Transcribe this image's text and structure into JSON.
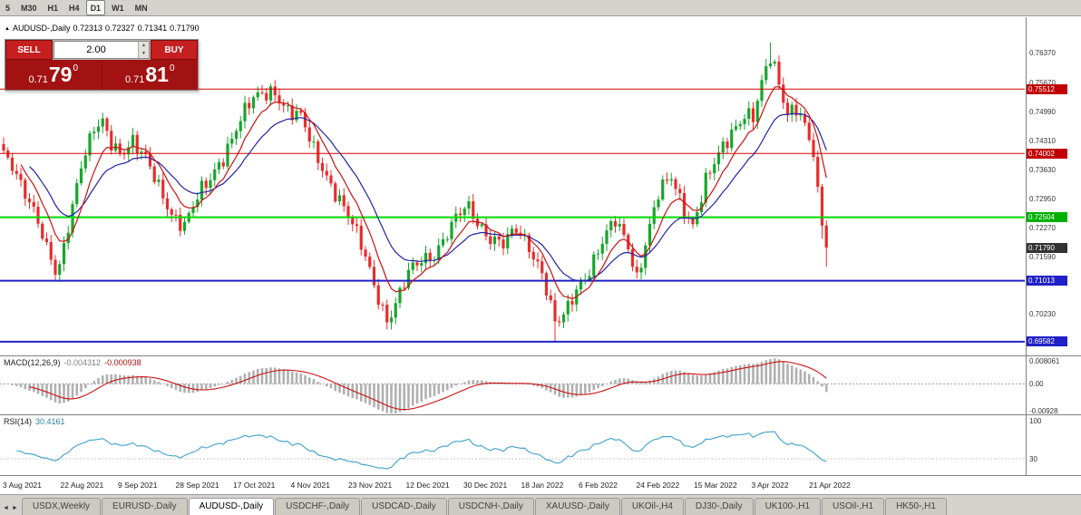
{
  "toolbar": {
    "timeframes": [
      {
        "label": "5",
        "active": false
      },
      {
        "label": "M30",
        "active": false
      },
      {
        "label": "H1",
        "active": false
      },
      {
        "label": "H4",
        "active": false
      },
      {
        "label": "D1",
        "active": true
      },
      {
        "label": "W1",
        "active": false
      },
      {
        "label": "MN",
        "active": false
      }
    ]
  },
  "header": {
    "marker": "▲",
    "symbol": "AUDUSD-,Daily",
    "open": "0.72313",
    "high": "0.72327",
    "low": "0.71341",
    "close": "0.71790"
  },
  "trade_panel": {
    "sell_label": "SELL",
    "buy_label": "BUY",
    "volume": "2.00",
    "volume_up": "▲",
    "volume_down": "▼",
    "sell_price": {
      "prefix": "0.71",
      "big": "79",
      "sup": "0"
    },
    "buy_price": {
      "prefix": "0.71",
      "big": "81",
      "sup": "0"
    }
  },
  "price_axis": {
    "ticks": [
      "0.76370",
      "0.75670",
      "0.74990",
      "0.74310",
      "0.73630",
      "0.72950",
      "0.72270",
      "0.71590",
      "0.70230"
    ],
    "badges": [
      {
        "label": "0.75512",
        "color": "#c00000"
      },
      {
        "label": "0.74002",
        "color": "#c00000"
      },
      {
        "label": "0.72504",
        "color": "#00b000"
      },
      {
        "label": "0.71790",
        "color": "#333333"
      },
      {
        "label": "0.71013",
        "color": "#2020c8"
      },
      {
        "label": "0.69582",
        "color": "#2020c8"
      }
    ]
  },
  "hlines": [
    {
      "value": 0.75512,
      "color": "#d40000",
      "w": 1
    },
    {
      "value": 0.74002,
      "color": "#d40000",
      "w": 1
    },
    {
      "value": 0.72504,
      "color": "#00d900",
      "w": 2
    },
    {
      "value": 0.71013,
      "color": "#2020c8",
      "w": 2
    },
    {
      "value": 0.69582,
      "color": "#2020c8",
      "w": 2
    }
  ],
  "chart_data": {
    "type": "candlestick",
    "symbol": "AUDUSD-",
    "timeframe": "Daily",
    "count": 192,
    "price_range": [
      0.6926,
      0.772
    ],
    "visible_ohlc": {
      "open": 0.72313,
      "high": 0.72327,
      "low": 0.71341,
      "close": 0.7179
    },
    "up_color": "#18a52c",
    "down_color": "#e82c2c",
    "ma_fast": {
      "period": 8,
      "color": "#cc1111"
    },
    "ma_slow": {
      "period": 18,
      "color": "#2222aa"
    },
    "noise_damp_from": 185,
    "anchors": [
      [
        0,
        0.739
      ],
      [
        2,
        0.7372
      ],
      [
        4,
        0.7335
      ],
      [
        6,
        0.7295
      ],
      [
        8,
        0.724
      ],
      [
        10,
        0.717
      ],
      [
        12,
        0.7118
      ],
      [
        13,
        0.713
      ],
      [
        15,
        0.7235
      ],
      [
        18,
        0.738
      ],
      [
        21,
        0.7455
      ],
      [
        23,
        0.7465
      ],
      [
        25,
        0.742
      ],
      [
        27,
        0.7405
      ],
      [
        30,
        0.7435
      ],
      [
        33,
        0.7385
      ],
      [
        36,
        0.7315
      ],
      [
        39,
        0.726
      ],
      [
        42,
        0.7238
      ],
      [
        45,
        0.7295
      ],
      [
        48,
        0.7335
      ],
      [
        51,
        0.7395
      ],
      [
        54,
        0.7465
      ],
      [
        57,
        0.7515
      ],
      [
        60,
        0.7535
      ],
      [
        63,
        0.7548
      ],
      [
        66,
        0.7505
      ],
      [
        69,
        0.7482
      ],
      [
        72,
        0.7405
      ],
      [
        75,
        0.735
      ],
      [
        78,
        0.7295
      ],
      [
        81,
        0.723
      ],
      [
        84,
        0.7155
      ],
      [
        86,
        0.7095
      ],
      [
        89,
        0.7012
      ],
      [
        91,
        0.7045
      ],
      [
        94,
        0.7115
      ],
      [
        97,
        0.7152
      ],
      [
        100,
        0.7168
      ],
      [
        103,
        0.7212
      ],
      [
        106,
        0.7258
      ],
      [
        108,
        0.7272
      ],
      [
        110,
        0.7242
      ],
      [
        113,
        0.7205
      ],
      [
        116,
        0.7185
      ],
      [
        119,
        0.7218
      ],
      [
        122,
        0.7185
      ],
      [
        125,
        0.7125
      ],
      [
        128,
        0.6998
      ],
      [
        130,
        0.7012
      ],
      [
        133,
        0.7082
      ],
      [
        136,
        0.7132
      ],
      [
        139,
        0.7192
      ],
      [
        142,
        0.7238
      ],
      [
        145,
        0.7185
      ],
      [
        147,
        0.7112
      ],
      [
        149,
        0.7192
      ],
      [
        152,
        0.7302
      ],
      [
        155,
        0.7342
      ],
      [
        157,
        0.7295
      ],
      [
        160,
        0.7235
      ],
      [
        163,
        0.7332
      ],
      [
        166,
        0.7392
      ],
      [
        169,
        0.7452
      ],
      [
        172,
        0.7498
      ],
      [
        174,
        0.7485
      ],
      [
        176,
        0.7558
      ],
      [
        178,
        0.7622
      ],
      [
        179,
        0.7598
      ],
      [
        180,
        0.7562
      ],
      [
        182,
        0.7502
      ],
      [
        184,
        0.7512
      ],
      [
        186,
        0.7472
      ],
      [
        187,
        0.7432
      ],
      [
        188,
        0.7392
      ],
      [
        189,
        0.7322
      ],
      [
        190,
        0.7231
      ],
      [
        191,
        0.7179
      ]
    ],
    "wick_overrides": {
      "12": {
        "low": 0.7106
      },
      "23": {
        "high": 0.7478
      },
      "89": {
        "low": 0.6993
      },
      "128": {
        "low": 0.69582
      },
      "178": {
        "high": 0.7661
      },
      "190": {
        "low": 0.72
      },
      "191": {
        "low": 0.71341,
        "high": 0.72327
      }
    }
  },
  "macd": {
    "label": "MACD(12,26,9)",
    "value1": "-0.004312",
    "value2": "-0.000938",
    "axis_labels": [
      {
        "text": "0.008061",
        "value": 0.008061
      },
      {
        "text": "0.00",
        "value": 0
      },
      {
        "text": "-0.00928",
        "value": -0.00928
      }
    ],
    "range": [
      -0.0105,
      0.0095
    ],
    "hist_color": "#b0b0b0",
    "hist_stroke": "#8c8c8c",
    "signal_color": "#cc1111"
  },
  "rsi": {
    "label": "RSI(14)",
    "value": "30.4161",
    "axis_labels": [
      {
        "text": "100",
        "value": 100
      },
      {
        "text": "30",
        "value": 30
      }
    ],
    "range": [
      0,
      110
    ],
    "level": 30,
    "line_color": "#3d9fce"
  },
  "date_axis": {
    "labels": [
      "3 Aug 2021",
      "22 Aug 2021",
      "9 Sep 2021",
      "28 Sep 2021",
      "17 Oct 2021",
      "4 Nov 2021",
      "23 Nov 2021",
      "12 Dec 2021",
      "30 Dec 2021",
      "18 Jan 2022",
      "6 Feb 2022",
      "24 Feb 2022",
      "15 Mar 2022",
      "3 Apr 2022",
      "21 Apr 2022"
    ]
  },
  "tabs": {
    "scroll_left": "◄",
    "scroll_right": "►",
    "items": [
      {
        "label": "USDX,Weekly",
        "active": false
      },
      {
        "label": "EURUSD-,Daily",
        "active": false
      },
      {
        "label": "AUDUSD-,Daily",
        "active": true
      },
      {
        "label": "USDCHF-,Daily",
        "active": false
      },
      {
        "label": "USDCAD-,Daily",
        "active": false
      },
      {
        "label": "USDCNH-,Daily",
        "active": false
      },
      {
        "label": "XAUUSD-,Daily",
        "active": false
      },
      {
        "label": "UKOil-,H4",
        "active": false
      },
      {
        "label": "DJ30-,Daily",
        "active": false
      },
      {
        "label": "UK100-,H1",
        "active": false
      },
      {
        "label": "USOil-,H1",
        "active": false
      },
      {
        "label": "HK50-,H1",
        "active": false
      }
    ]
  }
}
